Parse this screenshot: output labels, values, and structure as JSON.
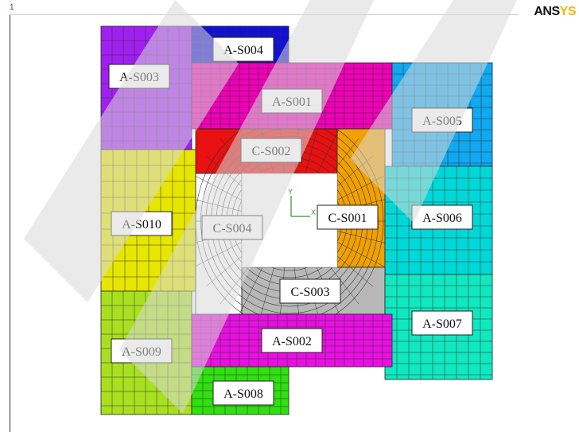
{
  "window": {
    "number": "1"
  },
  "logo": {
    "dark": "ANS",
    "accent": "YS",
    "accent_color": "#f2b705"
  },
  "triad": {
    "y": "Y",
    "x": "X"
  },
  "regions": [
    {
      "id": "A-S003",
      "color": "#a020f0",
      "label": "A-S003"
    },
    {
      "id": "A-S004",
      "color": "#1010d8",
      "label": "A-S004"
    },
    {
      "id": "A-S001",
      "color": "#f000b8",
      "label": "A-S001"
    },
    {
      "id": "A-S005",
      "color": "#10a8f0",
      "label": "A-S005"
    },
    {
      "id": "C-S002",
      "color": "#e81010",
      "label": "C-S002"
    },
    {
      "id": "A-S010",
      "color": "#e6e600",
      "label": "A-S010"
    },
    {
      "id": "C-S004",
      "color": "#ffffff",
      "label": "C-S004"
    },
    {
      "id": "C-S001",
      "color": "#f0a000",
      "label": "C-S001"
    },
    {
      "id": "A-S006",
      "color": "#00d8d8",
      "label": "A-S006"
    },
    {
      "id": "C-S003",
      "color": "#b8b8b8",
      "label": "C-S003"
    },
    {
      "id": "A-S007",
      "color": "#10e8c0",
      "label": "A-S007"
    },
    {
      "id": "A-S009",
      "color": "#a8e020",
      "label": "A-S009"
    },
    {
      "id": "A-S002",
      "color": "#e810e0",
      "label": "A-S002"
    },
    {
      "id": "A-S008",
      "color": "#30e010",
      "label": "A-S008"
    }
  ],
  "watermark": {
    "color": "#d8d8d8"
  }
}
